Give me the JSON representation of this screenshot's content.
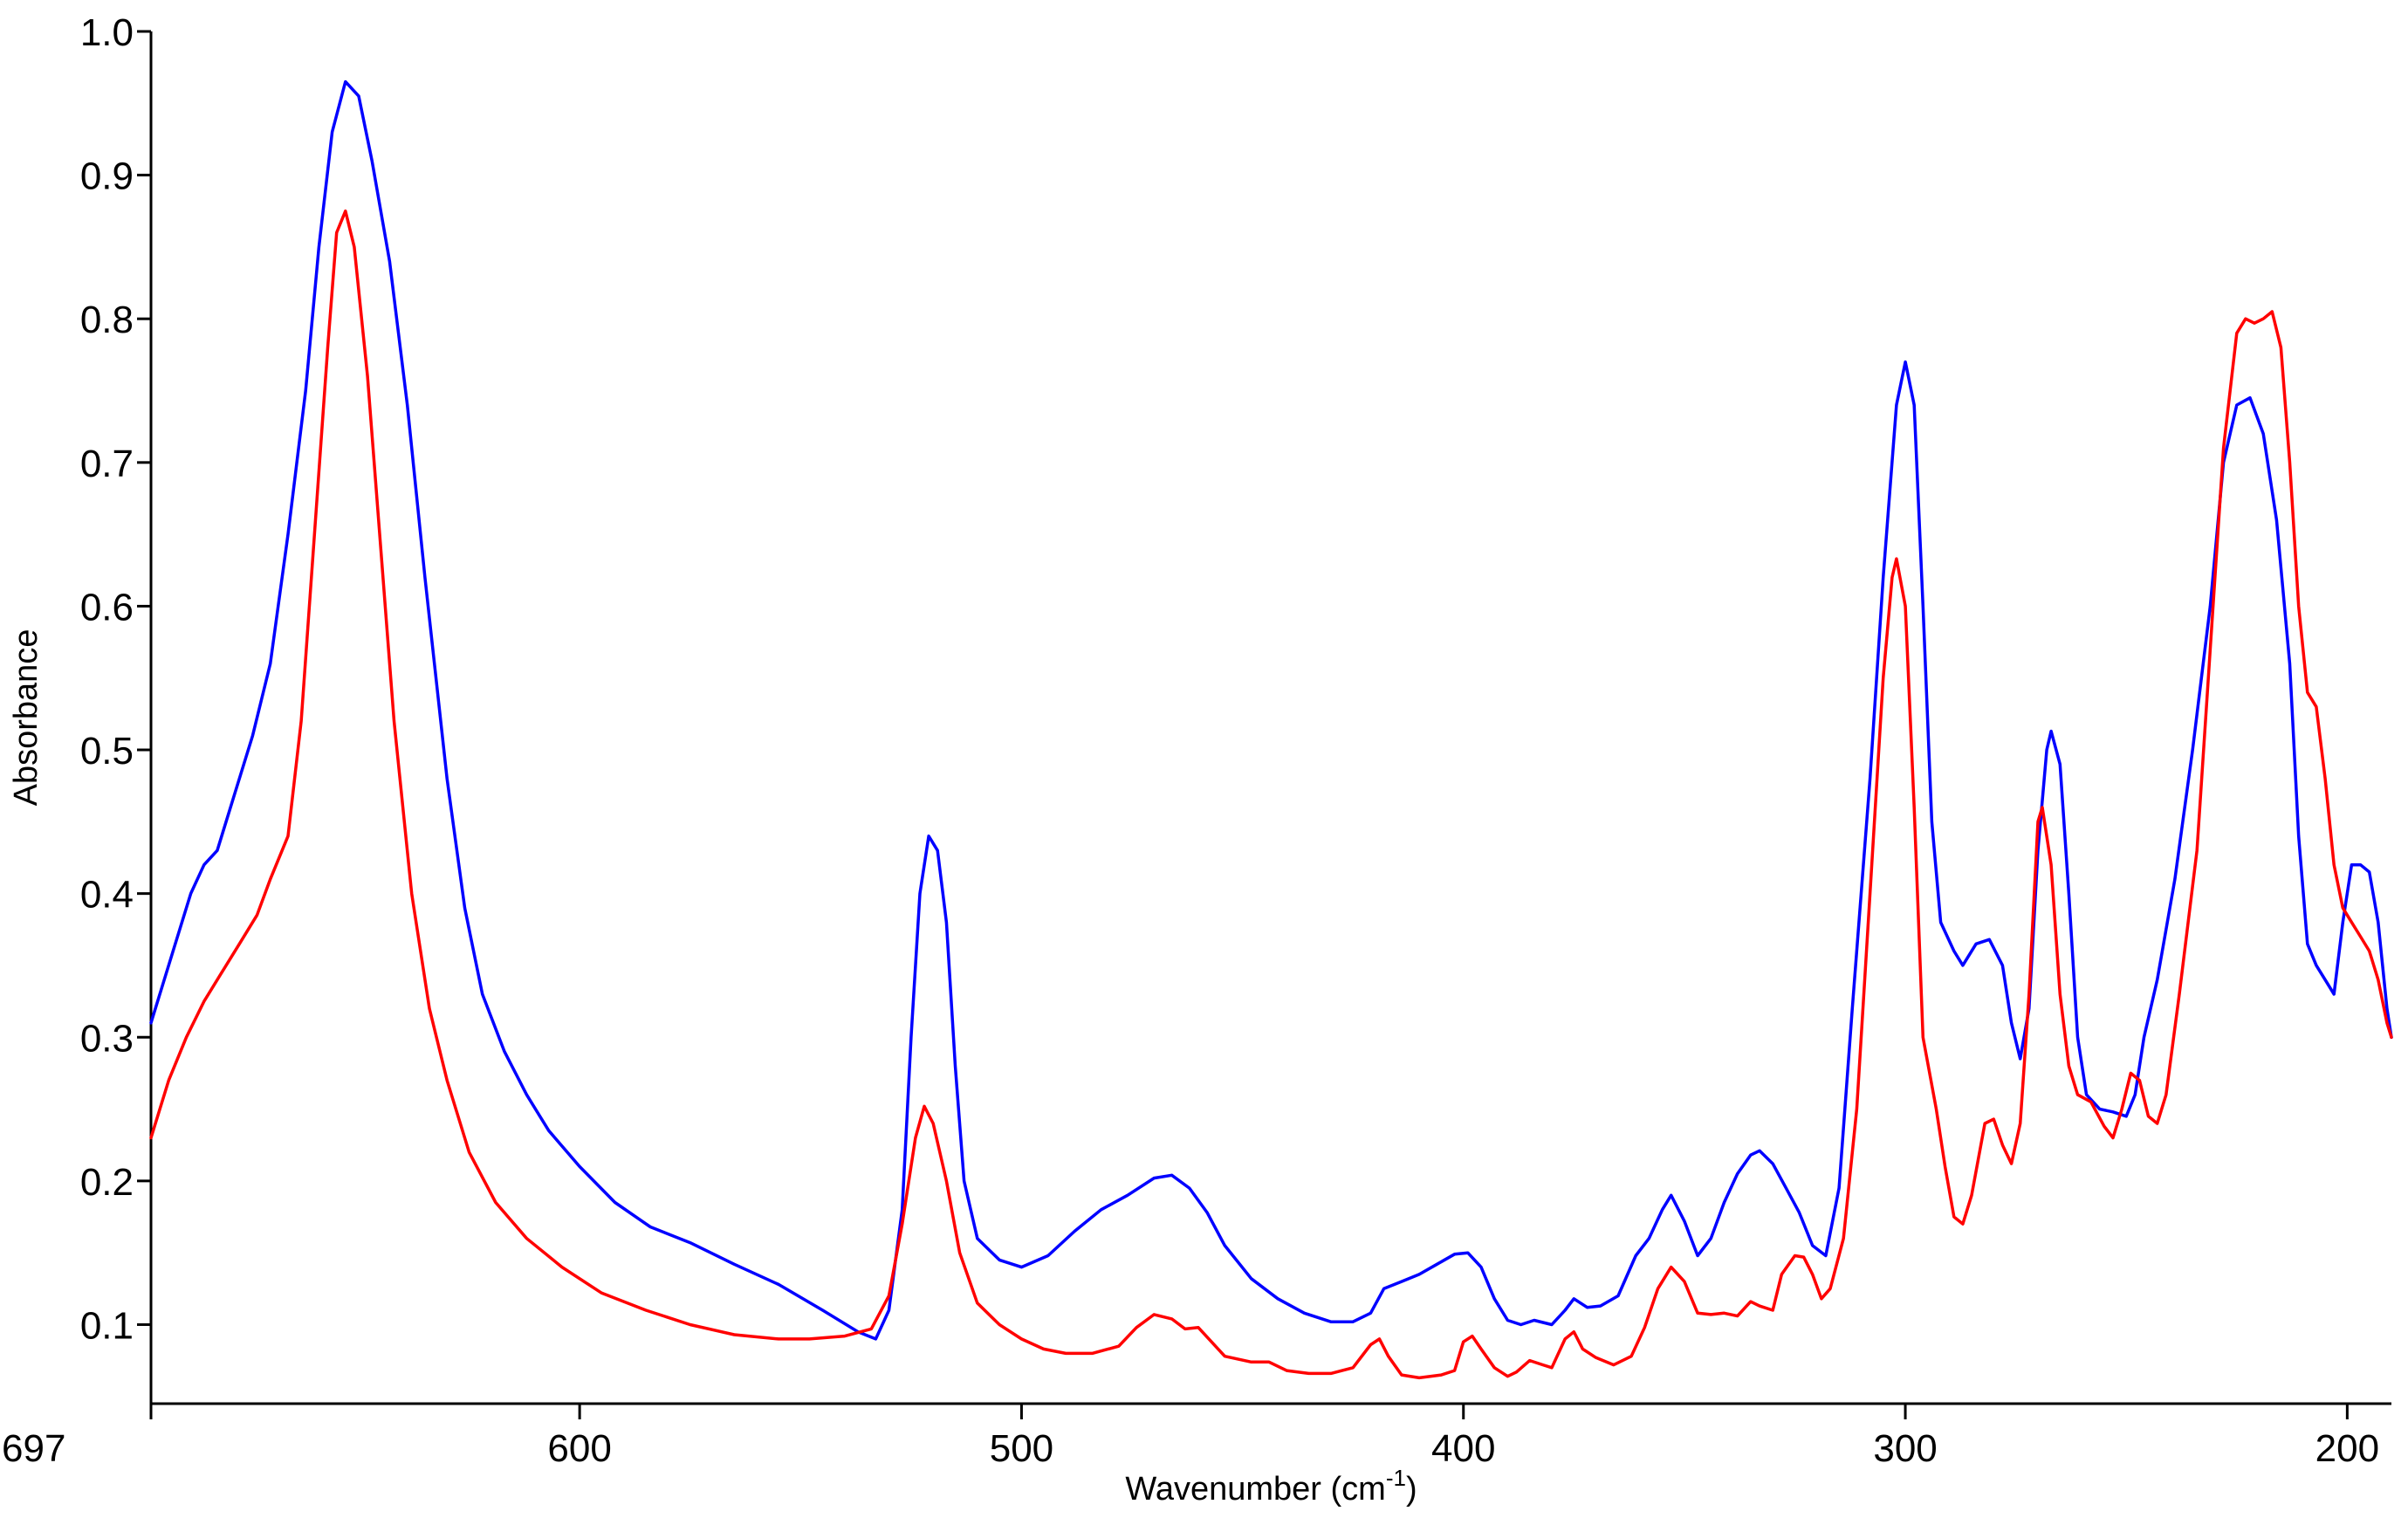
{
  "chart_data": {
    "type": "line",
    "xlabel": "Wavenumber (cm",
    "xlabel_sup": "-1",
    "xlabel_end": ")",
    "ylabel": "Absorbance",
    "xlim": [
      697,
      190
    ],
    "ylim": [
      0.045,
      1.0
    ],
    "x_reversed": true,
    "grid": false,
    "legend": "none",
    "x_ticks": [
      {
        "value": 697,
        "label": "697"
      },
      {
        "value": 600,
        "label": "600"
      },
      {
        "value": 500,
        "label": "500"
      },
      {
        "value": 400,
        "label": "400"
      },
      {
        "value": 300,
        "label": "300"
      },
      {
        "value": 200,
        "label": "200"
      }
    ],
    "y_ticks": [
      {
        "value": 0.1,
        "label": "0.1"
      },
      {
        "value": 0.2,
        "label": "0.2"
      },
      {
        "value": 0.3,
        "label": "0.3"
      },
      {
        "value": 0.4,
        "label": "0.4"
      },
      {
        "value": 0.5,
        "label": "0.5"
      },
      {
        "value": 0.6,
        "label": "0.6"
      },
      {
        "value": 0.7,
        "label": "0.7"
      },
      {
        "value": 0.8,
        "label": "0.8"
      },
      {
        "value": 0.9,
        "label": "0.9"
      },
      {
        "value": 1.0,
        "label": "1.0"
      }
    ],
    "series": [
      {
        "color": "#0000ff",
        "points": [
          [
            697,
            0.31
          ],
          [
            692,
            0.36
          ],
          [
            688,
            0.4
          ],
          [
            685,
            0.42
          ],
          [
            682,
            0.43
          ],
          [
            678,
            0.47
          ],
          [
            674,
            0.51
          ],
          [
            670,
            0.56
          ],
          [
            666,
            0.65
          ],
          [
            662,
            0.75
          ],
          [
            659,
            0.85
          ],
          [
            656,
            0.93
          ],
          [
            653,
            0.965
          ],
          [
            650,
            0.955
          ],
          [
            647,
            0.91
          ],
          [
            643,
            0.84
          ],
          [
            639,
            0.74
          ],
          [
            635,
            0.62
          ],
          [
            630,
            0.48
          ],
          [
            626,
            0.39
          ],
          [
            622,
            0.33
          ],
          [
            617,
            0.29
          ],
          [
            612,
            0.26
          ],
          [
            607,
            0.235
          ],
          [
            600,
            0.21
          ],
          [
            592,
            0.185
          ],
          [
            584,
            0.168
          ],
          [
            575,
            0.157
          ],
          [
            565,
            0.142
          ],
          [
            555,
            0.128
          ],
          [
            545,
            0.11
          ],
          [
            537,
            0.095
          ],
          [
            533,
            0.09
          ],
          [
            530,
            0.11
          ],
          [
            527,
            0.18
          ],
          [
            525,
            0.3
          ],
          [
            523,
            0.4
          ],
          [
            521,
            0.44
          ],
          [
            519,
            0.43
          ],
          [
            517,
            0.38
          ],
          [
            515,
            0.28
          ],
          [
            513,
            0.2
          ],
          [
            510,
            0.16
          ],
          [
            505,
            0.145
          ],
          [
            500,
            0.14
          ],
          [
            494,
            0.148
          ],
          [
            488,
            0.165
          ],
          [
            482,
            0.18
          ],
          [
            476,
            0.19
          ],
          [
            470,
            0.202
          ],
          [
            466,
            0.204
          ],
          [
            462,
            0.195
          ],
          [
            458,
            0.178
          ],
          [
            454,
            0.155
          ],
          [
            448,
            0.132
          ],
          [
            442,
            0.118
          ],
          [
            436,
            0.108
          ],
          [
            430,
            0.102
          ],
          [
            425,
            0.102
          ],
          [
            421,
            0.108
          ],
          [
            418,
            0.125
          ],
          [
            414,
            0.13
          ],
          [
            410,
            0.135
          ],
          [
            406,
            0.142
          ],
          [
            402,
            0.149
          ],
          [
            399,
            0.15
          ],
          [
            396,
            0.14
          ],
          [
            393,
            0.118
          ],
          [
            390,
            0.103
          ],
          [
            387,
            0.1
          ],
          [
            384,
            0.103
          ],
          [
            380,
            0.1
          ],
          [
            377,
            0.11
          ],
          [
            375,
            0.118
          ],
          [
            372,
            0.112
          ],
          [
            369,
            0.113
          ],
          [
            365,
            0.12
          ],
          [
            361,
            0.148
          ],
          [
            358,
            0.16
          ],
          [
            355,
            0.18
          ],
          [
            353,
            0.19
          ],
          [
            350,
            0.172
          ],
          [
            347,
            0.148
          ],
          [
            344,
            0.16
          ],
          [
            341,
            0.185
          ],
          [
            338,
            0.205
          ],
          [
            335,
            0.218
          ],
          [
            333,
            0.221
          ],
          [
            330,
            0.212
          ],
          [
            327,
            0.195
          ],
          [
            324,
            0.178
          ],
          [
            321,
            0.155
          ],
          [
            318,
            0.148
          ],
          [
            315,
            0.195
          ],
          [
            312,
            0.32
          ],
          [
            308,
            0.48
          ],
          [
            305,
            0.62
          ],
          [
            302,
            0.74
          ],
          [
            300,
            0.77
          ],
          [
            298,
            0.74
          ],
          [
            296,
            0.6
          ],
          [
            294,
            0.45
          ],
          [
            292,
            0.38
          ],
          [
            289,
            0.36
          ],
          [
            287,
            0.35
          ],
          [
            284,
            0.365
          ],
          [
            281,
            0.368
          ],
          [
            278,
            0.35
          ],
          [
            276,
            0.31
          ],
          [
            274,
            0.285
          ],
          [
            272,
            0.32
          ],
          [
            270,
            0.43
          ],
          [
            268,
            0.5
          ],
          [
            267,
            0.513
          ],
          [
            265,
            0.49
          ],
          [
            263,
            0.4
          ],
          [
            261,
            0.3
          ],
          [
            259,
            0.26
          ],
          [
            256,
            0.25
          ],
          [
            253,
            0.248
          ],
          [
            250,
            0.245
          ],
          [
            248,
            0.26
          ],
          [
            246,
            0.3
          ],
          [
            243,
            0.34
          ],
          [
            239,
            0.41
          ],
          [
            235,
            0.5
          ],
          [
            231,
            0.6
          ],
          [
            228,
            0.7
          ],
          [
            225,
            0.74
          ],
          [
            222,
            0.745
          ],
          [
            219,
            0.72
          ],
          [
            216,
            0.66
          ],
          [
            213,
            0.56
          ],
          [
            211,
            0.44
          ],
          [
            209,
            0.365
          ],
          [
            207,
            0.35
          ],
          [
            205,
            0.34
          ],
          [
            203,
            0.33
          ],
          [
            201,
            0.38
          ],
          [
            199,
            0.42
          ],
          [
            197,
            0.42
          ],
          [
            195,
            0.415
          ],
          [
            193,
            0.38
          ],
          [
            191,
            0.32
          ],
          [
            190,
            0.3
          ]
        ]
      },
      {
        "color": "#ff0000",
        "points": [
          [
            697,
            0.23
          ],
          [
            693,
            0.27
          ],
          [
            689,
            0.3
          ],
          [
            685,
            0.325
          ],
          [
            681,
            0.345
          ],
          [
            677,
            0.365
          ],
          [
            673,
            0.385
          ],
          [
            670,
            0.41
          ],
          [
            666,
            0.44
          ],
          [
            663,
            0.52
          ],
          [
            660,
            0.65
          ],
          [
            657,
            0.78
          ],
          [
            655,
            0.86
          ],
          [
            653,
            0.875
          ],
          [
            651,
            0.85
          ],
          [
            648,
            0.76
          ],
          [
            645,
            0.64
          ],
          [
            642,
            0.52
          ],
          [
            638,
            0.4
          ],
          [
            634,
            0.32
          ],
          [
            630,
            0.27
          ],
          [
            625,
            0.22
          ],
          [
            619,
            0.185
          ],
          [
            612,
            0.16
          ],
          [
            604,
            0.14
          ],
          [
            595,
            0.122
          ],
          [
            585,
            0.11
          ],
          [
            575,
            0.1
          ],
          [
            565,
            0.093
          ],
          [
            555,
            0.09
          ],
          [
            548,
            0.09
          ],
          [
            540,
            0.092
          ],
          [
            534,
            0.097
          ],
          [
            530,
            0.12
          ],
          [
            527,
            0.17
          ],
          [
            524,
            0.23
          ],
          [
            522,
            0.252
          ],
          [
            520,
            0.24
          ],
          [
            517,
            0.2
          ],
          [
            514,
            0.15
          ],
          [
            510,
            0.115
          ],
          [
            505,
            0.1
          ],
          [
            500,
            0.09
          ],
          [
            495,
            0.083
          ],
          [
            490,
            0.08
          ],
          [
            484,
            0.08
          ],
          [
            478,
            0.085
          ],
          [
            474,
            0.098
          ],
          [
            470,
            0.107
          ],
          [
            466,
            0.104
          ],
          [
            463,
            0.097
          ],
          [
            460,
            0.098
          ],
          [
            457,
            0.088
          ],
          [
            454,
            0.078
          ],
          [
            448,
            0.074
          ],
          [
            444,
            0.074
          ],
          [
            440,
            0.068
          ],
          [
            435,
            0.066
          ],
          [
            430,
            0.066
          ],
          [
            425,
            0.07
          ],
          [
            421,
            0.086
          ],
          [
            419,
            0.09
          ],
          [
            417,
            0.078
          ],
          [
            414,
            0.065
          ],
          [
            410,
            0.063
          ],
          [
            405,
            0.065
          ],
          [
            402,
            0.068
          ],
          [
            400,
            0.088
          ],
          [
            398,
            0.092
          ],
          [
            396,
            0.083
          ],
          [
            393,
            0.07
          ],
          [
            390,
            0.064
          ],
          [
            388,
            0.067
          ],
          [
            385,
            0.075
          ],
          [
            382,
            0.072
          ],
          [
            380,
            0.07
          ],
          [
            377,
            0.09
          ],
          [
            375,
            0.095
          ],
          [
            373,
            0.083
          ],
          [
            370,
            0.077
          ],
          [
            366,
            0.072
          ],
          [
            362,
            0.078
          ],
          [
            359,
            0.098
          ],
          [
            356,
            0.125
          ],
          [
            353,
            0.14
          ],
          [
            350,
            0.13
          ],
          [
            347,
            0.108
          ],
          [
            344,
            0.107
          ],
          [
            341,
            0.108
          ],
          [
            338,
            0.106
          ],
          [
            335,
            0.116
          ],
          [
            333,
            0.113
          ],
          [
            330,
            0.11
          ],
          [
            328,
            0.135
          ],
          [
            325,
            0.148
          ],
          [
            323,
            0.147
          ],
          [
            321,
            0.135
          ],
          [
            319,
            0.118
          ],
          [
            317,
            0.125
          ],
          [
            314,
            0.16
          ],
          [
            311,
            0.25
          ],
          [
            308,
            0.4
          ],
          [
            305,
            0.55
          ],
          [
            303,
            0.62
          ],
          [
            302,
            0.633
          ],
          [
            300,
            0.6
          ],
          [
            298,
            0.46
          ],
          [
            296,
            0.3
          ],
          [
            293,
            0.25
          ],
          [
            291,
            0.21
          ],
          [
            289,
            0.175
          ],
          [
            287,
            0.17
          ],
          [
            285,
            0.19
          ],
          [
            282,
            0.24
          ],
          [
            280,
            0.243
          ],
          [
            278,
            0.225
          ],
          [
            276,
            0.212
          ],
          [
            274,
            0.24
          ],
          [
            272,
            0.33
          ],
          [
            270,
            0.45
          ],
          [
            269,
            0.46
          ],
          [
            267,
            0.42
          ],
          [
            265,
            0.33
          ],
          [
            263,
            0.28
          ],
          [
            261,
            0.26
          ],
          [
            258,
            0.255
          ],
          [
            255,
            0.238
          ],
          [
            253,
            0.23
          ],
          [
            251,
            0.25
          ],
          [
            249,
            0.275
          ],
          [
            247,
            0.27
          ],
          [
            245,
            0.245
          ],
          [
            243,
            0.24
          ],
          [
            241,
            0.26
          ],
          [
            238,
            0.33
          ],
          [
            234,
            0.43
          ],
          [
            231,
            0.57
          ],
          [
            228,
            0.71
          ],
          [
            225,
            0.79
          ],
          [
            223,
            0.8
          ],
          [
            221,
            0.797
          ],
          [
            219,
            0.8
          ],
          [
            217,
            0.805
          ],
          [
            215,
            0.78
          ],
          [
            213,
            0.7
          ],
          [
            211,
            0.6
          ],
          [
            209,
            0.54
          ],
          [
            207,
            0.53
          ],
          [
            205,
            0.48
          ],
          [
            203,
            0.42
          ],
          [
            201,
            0.39
          ],
          [
            199,
            0.38
          ],
          [
            197,
            0.37
          ],
          [
            195,
            0.36
          ],
          [
            193,
            0.34
          ],
          [
            191,
            0.31
          ],
          [
            190,
            0.3
          ]
        ]
      }
    ]
  }
}
